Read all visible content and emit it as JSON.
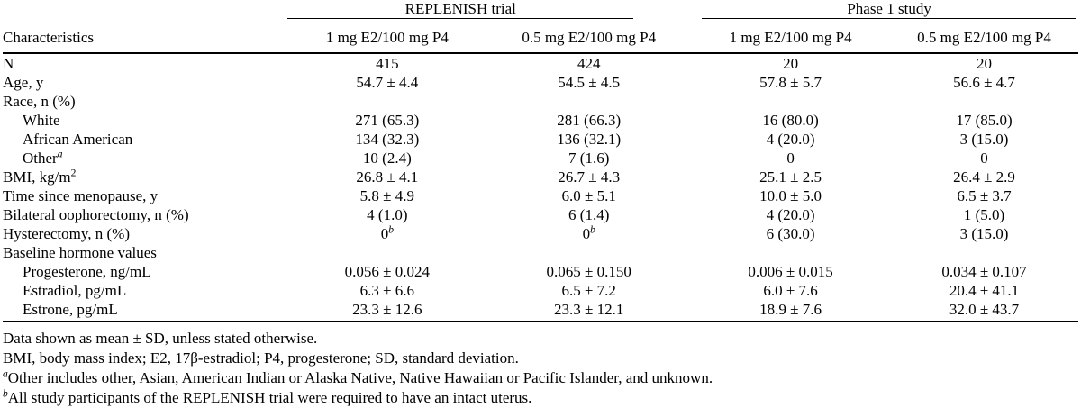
{
  "table": {
    "characteristics_header": "Characteristics",
    "col_groups": [
      {
        "label": "REPLENISH trial"
      },
      {
        "label": "Phase 1 study"
      }
    ],
    "sub_headers": [
      "1 mg E2/100 mg P4",
      "0.5 mg E2/100 mg P4",
      "1 mg E2/100 mg P4",
      "0.5 mg E2/100 mg P4"
    ],
    "rows": [
      {
        "label": "N",
        "indent": false,
        "values": [
          "415",
          "424",
          "20",
          "20"
        ]
      },
      {
        "label": "Age, y",
        "indent": false,
        "values": [
          "54.7 ± 4.4",
          "54.5 ± 4.5",
          "57.8 ± 5.7",
          "56.6 ± 4.7"
        ]
      },
      {
        "label": "Race, n (%)",
        "indent": false,
        "values": [
          "",
          "",
          "",
          ""
        ]
      },
      {
        "label": "White",
        "indent": true,
        "values": [
          "271 (65.3)",
          "281 (66.3)",
          "16 (80.0)",
          "17 (85.0)"
        ]
      },
      {
        "label": "African American",
        "indent": true,
        "values": [
          "134 (32.3)",
          "136 (32.1)",
          "4 (20.0)",
          "3 (15.0)"
        ]
      },
      {
        "label": "Other^{a}",
        "indent": true,
        "values": [
          "10 (2.4)",
          "7 (1.6)",
          "0",
          "0"
        ]
      },
      {
        "label": "BMI, kg/m^{2}",
        "indent": false,
        "values": [
          "26.8 ± 4.1",
          "26.7 ± 4.3",
          "25.1 ± 2.5",
          "26.4 ± 2.9"
        ]
      },
      {
        "label": "Time since menopause, y",
        "indent": false,
        "values": [
          "5.8 ± 4.9",
          "6.0 ± 5.1",
          "10.0 ± 5.0",
          "6.5 ± 3.7"
        ]
      },
      {
        "label": "Bilateral oophorectomy, n (%)",
        "indent": false,
        "values": [
          "4 (1.0)",
          "6 (1.4)",
          "4 (20.0)",
          "1 (5.0)"
        ]
      },
      {
        "label": "Hysterectomy, n (%)",
        "indent": false,
        "values": [
          "0^{b}",
          "0^{b}",
          "6 (30.0)",
          "3 (15.0)"
        ]
      },
      {
        "label": "Baseline hormone values",
        "indent": false,
        "values": [
          "",
          "",
          "",
          ""
        ]
      },
      {
        "label": "Progesterone, ng/mL",
        "indent": true,
        "values": [
          "0.056 ± 0.024",
          "0.065 ± 0.150",
          "0.006 ± 0.015",
          "0.034 ± 0.107"
        ]
      },
      {
        "label": "Estradiol, pg/mL",
        "indent": true,
        "values": [
          "6.3 ± 6.6",
          "6.5 ± 7.2",
          "6.0 ± 7.6",
          "20.4 ± 41.1"
        ]
      },
      {
        "label": "Estrone, pg/mL",
        "indent": true,
        "values": [
          "23.3 ± 12.6",
          "23.3 ± 12.1",
          "18.9 ± 7.6",
          "32.0 ± 43.7"
        ]
      }
    ]
  },
  "footnotes": [
    {
      "marker": "",
      "text": "Data shown as mean ± SD, unless stated otherwise."
    },
    {
      "marker": "",
      "text": "BMI, body mass index; E2, 17β-estradiol; P4, progesterone; SD, standard deviation."
    },
    {
      "marker": "a",
      "text": "Other includes other, Asian, American Indian or Alaska Native, Native Hawaiian or Pacific Islander, and unknown."
    },
    {
      "marker": "b",
      "text": "All study participants of the REPLENISH trial were required to have an intact uterus."
    }
  ]
}
